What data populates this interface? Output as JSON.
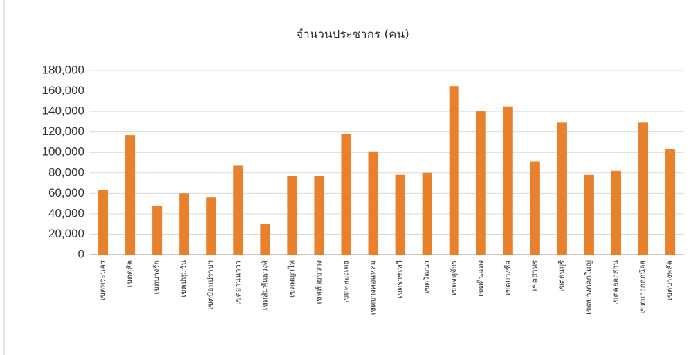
{
  "chart_data": {
    "type": "bar",
    "title": "จำนวนประชากร (คน)",
    "categories": [
      "เขตพระนคร",
      "เขตดุสิต",
      "เขตบางรัก",
      "เขตปทุมวัน",
      "เขตป้อมปราบฯ",
      "เขตยานนาวา",
      "เขตสัมพันธวงศ์",
      "เขตพญาไท",
      "เขตห้วยขวาง",
      "เขตคลองเตย",
      "เขตบางคอแหลม",
      "เขตราชเทวี",
      "เขตวัฒนา",
      "เขตจตุจักร",
      "เขตดินแดง",
      "เขตบางซื่อ",
      "เขตสาทร",
      "เขตธนบุรี",
      "เขตบางกอกใหญ่",
      "เขตคลองสาน",
      "เขตบางกอกน้อย",
      "เขตบางพลัด"
    ],
    "values": [
      63000,
      117000,
      48000,
      60000,
      56000,
      87000,
      30000,
      77000,
      77000,
      118000,
      101000,
      78000,
      80000,
      165000,
      140000,
      145000,
      91000,
      129000,
      78000,
      82000,
      129000,
      103000
    ],
    "color": "#e8802c",
    "ylim": [
      0,
      180000
    ],
    "yticks": [
      0,
      {
        "value": 20000,
        "label": "20,000"
      },
      {
        "value": 40000,
        "label": "40,000"
      },
      {
        "value": 60000,
        "label": "60,000"
      },
      {
        "value": 80000,
        "label": "80,000"
      },
      {
        "value": 100000,
        "label": "100,000"
      },
      {
        "value": 120000,
        "label": "120,000"
      },
      {
        "value": 140000,
        "label": "140,000"
      },
      {
        "value": 160000,
        "label": "160,000"
      },
      {
        "value": 180000,
        "label": "180,000"
      }
    ],
    "grid": true
  }
}
